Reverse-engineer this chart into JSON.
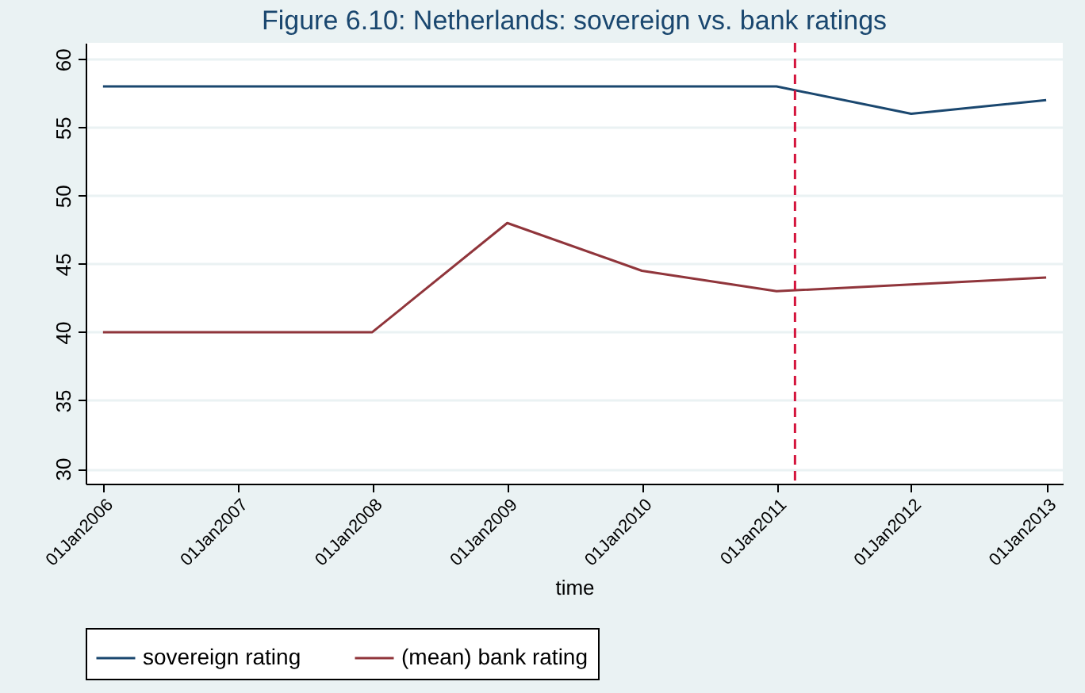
{
  "chart_data": {
    "type": "line",
    "title": "Figure 6.10: Netherlands: sovereign vs. bank ratings",
    "xlabel": "time",
    "x": [
      "2006-01-01",
      "2007-01-01",
      "2008-01-01",
      "2009-01-01",
      "2010-01-01",
      "2011-01-01",
      "2012-01-01",
      "2013-01-01"
    ],
    "series": [
      {
        "name": "sovereign rating",
        "color": "#1a476f",
        "values": [
          58,
          58,
          58,
          58,
          58,
          58,
          56,
          57
        ]
      },
      {
        "name": "(mean) bank rating",
        "color": "#90353b",
        "values": [
          40,
          40,
          40,
          48,
          44.5,
          43,
          43.5,
          44
        ]
      }
    ],
    "xlim": [
      "2005-11-15",
      "2013-02-15"
    ],
    "xticks": [
      {
        "value": "2006-01-01",
        "label": "01Jan2006"
      },
      {
        "value": "2007-01-01",
        "label": "01Jan2007"
      },
      {
        "value": "2008-01-01",
        "label": "01Jan2008"
      },
      {
        "value": "2009-01-01",
        "label": "01Jan2009"
      },
      {
        "value": "2010-01-01",
        "label": "01Jan2010"
      },
      {
        "value": "2011-01-01",
        "label": "01Jan2011"
      },
      {
        "value": "2012-01-01",
        "label": "01Jan2012"
      },
      {
        "value": "2013-01-01",
        "label": "01Jan2013"
      }
    ],
    "ylim": [
      28.9,
      61.2
    ],
    "yticks": [
      30,
      35,
      40,
      45,
      50,
      55,
      60
    ],
    "ref_lines": [
      {
        "axis": "x",
        "value": "2011-02-20",
        "color": "#d4143c",
        "line_style": "dashed"
      }
    ],
    "grid": "y",
    "legend": "bottom",
    "line_style": "solid",
    "marker": "none"
  }
}
